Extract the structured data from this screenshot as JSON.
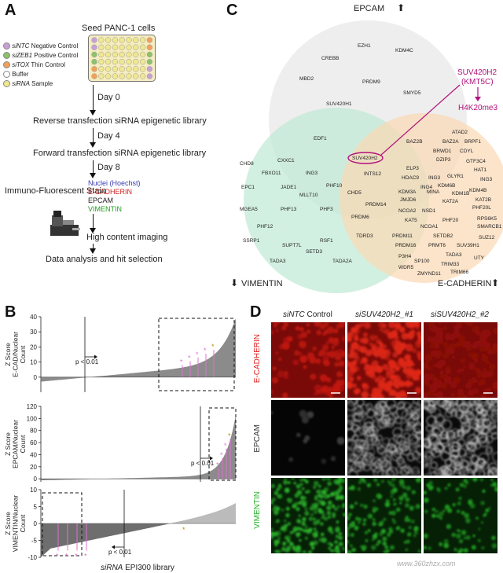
{
  "panelA": {
    "letter": "A",
    "title": "Seed PANC-1 cells",
    "legend": [
      {
        "italic": "siNTC",
        "rest": " Negative Control",
        "color": "#c8a0d8"
      },
      {
        "italic": "siZEB1",
        "rest": " Positive Control",
        "color": "#8cc26a"
      },
      {
        "italic": "siTOX",
        "rest": " Thin Control",
        "color": "#f2a15a"
      },
      {
        "italic": "",
        "rest": "Buffer",
        "color": "#ffffff"
      },
      {
        "italic": "siRNA",
        "rest": " Sample",
        "color": "#f0e890"
      }
    ],
    "steps": [
      {
        "day": "Day 0",
        "label": "Reverse transfection siRNA epigenetic library"
      },
      {
        "day": "Day 4",
        "label": "Forward transfection siRNA epigenetic library"
      },
      {
        "day": "Day 8",
        "label": "Immuno-Fluorescent Stain"
      }
    ],
    "stains": [
      {
        "label": "Nuclei (Hoechst)",
        "color": "#3a3ab0"
      },
      {
        "label": "E-CADHERIN",
        "color": "#d02020"
      },
      {
        "label": "EPCAM",
        "color": "#222222"
      },
      {
        "label": "VIMENTIN",
        "color": "#20a020"
      }
    ],
    "imaging": "High content imaging",
    "analysis": "Data analysis and hit selection"
  },
  "panelC": {
    "letter": "C",
    "epcam": "EPCAM",
    "vimentin": "VIMENTIN",
    "ecadherin": "E-CADHERIN",
    "up_arrow": "⬆",
    "down_arrow": "⬇",
    "highlight_gene": "SUV420H2",
    "highlight_label_1": "SUV420H2",
    "highlight_label_2": "(KMT5C)",
    "mark": "H4K20me3",
    "top_genes": [
      "EZH1",
      "KDM4C",
      "CREBB",
      "MBD2",
      "PRDM9",
      "SMYD5",
      "SUV420H1"
    ],
    "center_genes": [
      "EDF1",
      "INTS12",
      "CHD5",
      "PRDM14",
      "PRDM6",
      "TDRD3"
    ],
    "left_genes": [
      "CHD8",
      "CXXC1",
      "FBXO11",
      "ING3",
      "EPC1",
      "JADE1",
      "MLLT10",
      "PHF10",
      "MGEA5",
      "PHF13",
      "PHF3",
      "PHF12",
      "SSRP1",
      "RSF1",
      "SUPT7L",
      "SETD3",
      "TADA3",
      "TADA2A"
    ],
    "right_genes": [
      "ATAD2",
      "BAZ2B",
      "BAZ2A",
      "BRPF1",
      "BRWD1",
      "CDYL",
      "DZIP3",
      "GTF3C4",
      "ELP3",
      "HAT1",
      "HDAC9",
      "ING3",
      "GLYR1",
      "KDM6B",
      "ING3",
      "ING4",
      "KDM3A",
      "MINA",
      "KDM1B",
      "KDM4B",
      "KAT2B",
      "JMJD6",
      "KAT2A",
      "NCOA2",
      "NSD1",
      "PHF20L",
      "KAT5",
      "PHF20",
      "RPS6K5",
      "NCOA1",
      "SMARCB1",
      "PRDM11",
      "SETDB2",
      "PRDM16",
      "PRMT6",
      "SUV39H1",
      "SUZ12",
      "P3H4",
      "TADA3",
      "SP100",
      "TRIM33",
      "UTY",
      "WDR5",
      "TRIM66",
      "ZMYND11"
    ]
  },
  "panelB": {
    "letter": "B",
    "xlabel_italic": "siRNA",
    "xlabel_rest": " EPI300 library",
    "pval": "p < 0.01"
  },
  "chart_data": [
    {
      "type": "area",
      "ylabel": "Z Score E-CAD/Nuclear Count",
      "ylim": [
        -10,
        40
      ],
      "yticks": [
        0,
        10,
        20,
        30,
        40
      ],
      "highlight": "right",
      "star_count": 5
    },
    {
      "type": "area",
      "ylabel": "Z Score EPCAM/Nuclear Count",
      "ylim": [
        -5,
        120
      ],
      "yticks": [
        0,
        20,
        40,
        60,
        80,
        100,
        120
      ],
      "highlight": "right",
      "star_count": 4
    },
    {
      "type": "area",
      "ylabel": "Z Score VIMENTIN/Nuclear Count",
      "ylim": [
        -10,
        10
      ],
      "yticks": [
        -10,
        -5,
        0,
        5,
        10
      ],
      "highlight": "left",
      "star_count": 4
    }
  ],
  "panelD": {
    "letter": "D",
    "cols": [
      {
        "italic": "siNTC",
        "rest": " Control"
      },
      {
        "italic": "siSUV420H2_#1",
        "rest": ""
      },
      {
        "italic": "siSUV420H2_#2",
        "rest": ""
      }
    ],
    "rows": [
      {
        "label": "E-CADHERIN",
        "color": "#e02020"
      },
      {
        "label": "EPCAM",
        "color": "#333333"
      },
      {
        "label": "VIMENTIN",
        "color": "#20b020"
      }
    ]
  },
  "watermark": "www.360zhzx.com"
}
